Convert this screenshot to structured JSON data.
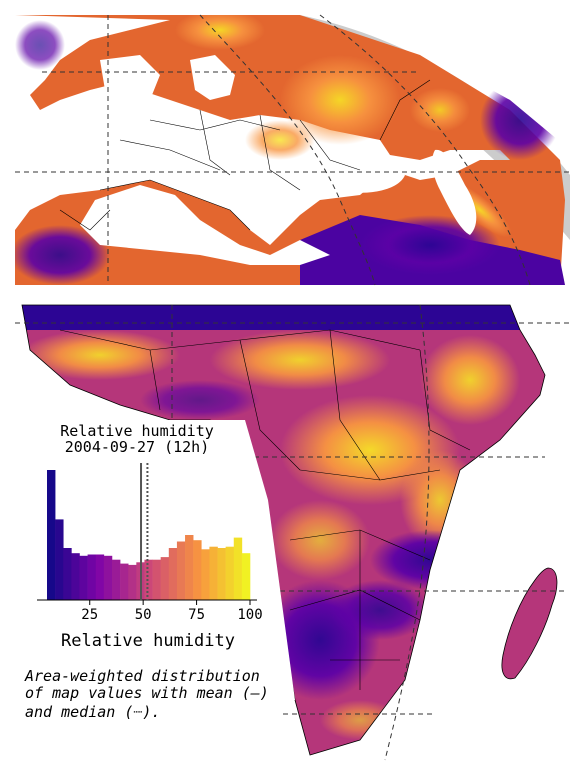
{
  "inset": {
    "title_line1": "Relative humidity",
    "title_line2": "2004-09-27 (12h)",
    "xlabel": "Relative humidity",
    "ticks": [
      "25",
      "50",
      "75",
      "100"
    ],
    "tick_values": [
      25,
      50,
      75,
      100
    ],
    "xrange": [
      5,
      100
    ],
    "mean": 49,
    "median": 52,
    "mean_color": "#555555",
    "median_color": "#555555"
  },
  "caption": {
    "line1": "Area-weighted distribution",
    "line2": "of map values with mean (—)",
    "line3": "and median (┈)."
  },
  "colormap": "plasma",
  "chart_data": {
    "type": "bar",
    "xlabel": "Relative humidity",
    "bin_edges": [
      5,
      8.8,
      12.6,
      16.4,
      20.2,
      24,
      27.8,
      31.6,
      35.4,
      39.2,
      43,
      46.8,
      50.6,
      54.4,
      58.2,
      62,
      65.8,
      69.6,
      73.4,
      77.2,
      81,
      84.8,
      88.6,
      92.4,
      96.2,
      100
    ],
    "values": [
      100,
      62,
      40,
      36,
      34,
      35,
      35,
      34,
      31,
      28,
      27,
      29,
      31,
      31,
      33,
      40,
      45,
      50,
      46,
      39,
      41,
      40,
      41,
      48,
      36
    ]
  }
}
